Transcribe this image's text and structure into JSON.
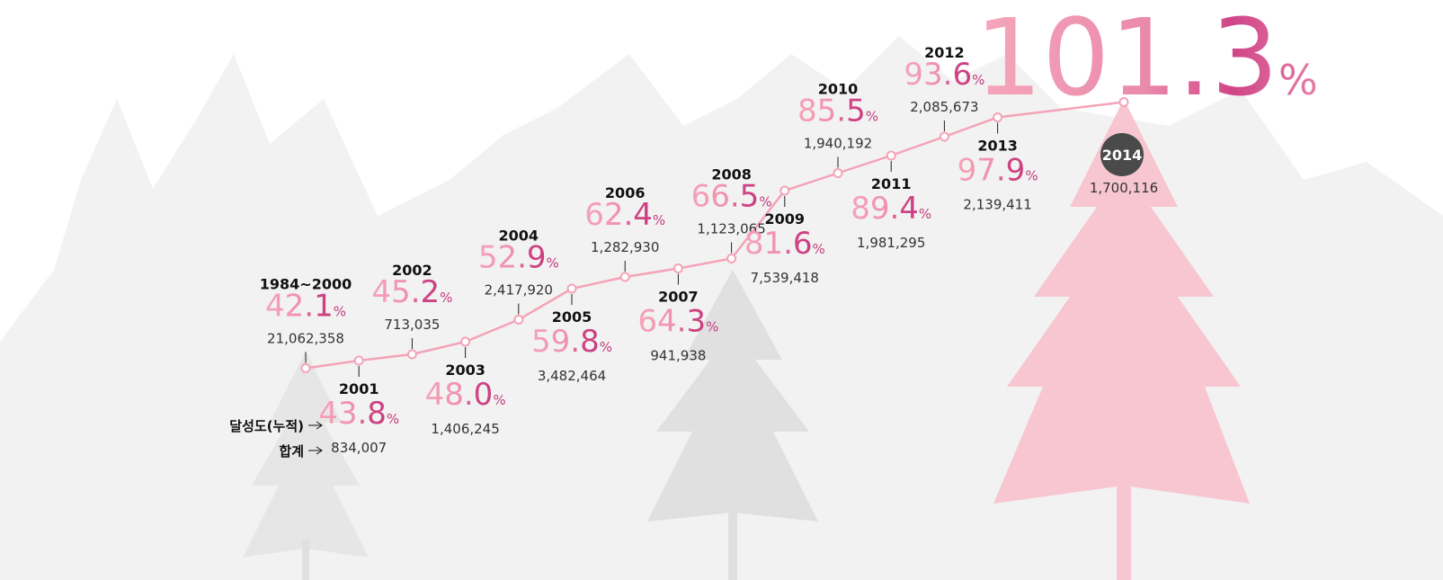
{
  "chart_data": {
    "type": "line",
    "categories": [
      "1984~2000",
      "2001",
      "2002",
      "2003",
      "2004",
      "2005",
      "2006",
      "2007",
      "2008",
      "2009",
      "2010",
      "2011",
      "2012",
      "2013",
      "2014"
    ],
    "unit": "%",
    "series": [
      {
        "name": "달성도(누적)",
        "color": "#f4a3b8",
        "values": [
          42.1,
          43.8,
          45.2,
          48.0,
          52.9,
          59.8,
          62.4,
          64.3,
          66.5,
          81.6,
          85.5,
          89.4,
          93.6,
          97.9,
          101.3
        ],
        "value_labels": [
          "42.1",
          "43.8",
          "45.2",
          "48.0",
          "52.9",
          "59.8",
          "62.4",
          "64.3",
          "66.5",
          "81.6",
          "85.5",
          "89.4",
          "93.6",
          "97.9",
          "101.3"
        ]
      },
      {
        "name": "합계",
        "values": [
          21062358,
          834007,
          713035,
          1406245,
          2417920,
          3482464,
          1282930,
          941938,
          1123065,
          7539418,
          1940192,
          1981295,
          2085673,
          2139411,
          1700116
        ],
        "value_labels": [
          "21,062,358",
          "834,007",
          "713,035",
          "1,406,245",
          "2,417,920",
          "3,482,464",
          "1,282,930",
          "941,938",
          "1,123,065",
          "7,539,418",
          "1,940,192",
          "1,981,295",
          "2,085,673",
          "2,139,411",
          "1,700,116"
        ]
      }
    ]
  }
}
